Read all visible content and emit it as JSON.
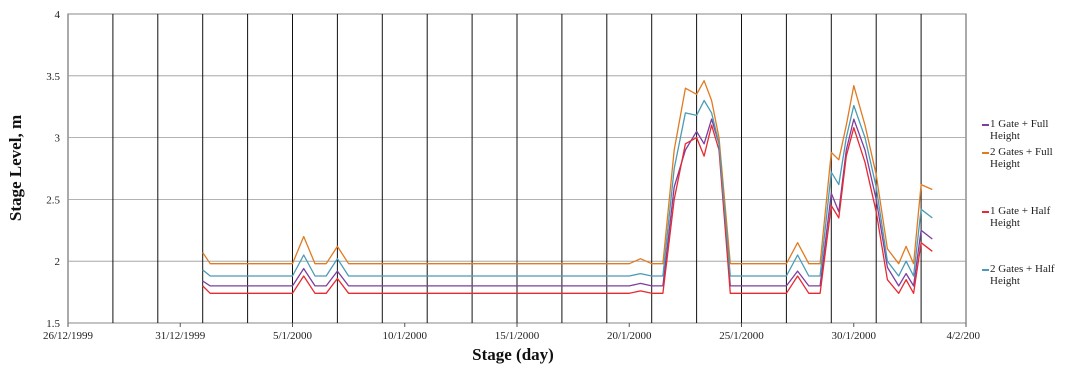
{
  "chart_data": {
    "type": "line",
    "title": "",
    "xlabel": "Stage (day)",
    "ylabel": "Stage Level, m",
    "xlim": [
      "26/12/1999",
      "4/2/2000"
    ],
    "ylim": [
      1.5,
      4
    ],
    "x_ticks": [
      "26/12/1999",
      "31/12/1999",
      "5/1/2000",
      "10/1/2000",
      "15/1/2000",
      "20/1/2000",
      "25/1/2000",
      "30/1/2000",
      "4/2/2000"
    ],
    "y_ticks": [
      "1.5",
      "2",
      "2.5",
      "3",
      "3.5",
      "4"
    ],
    "grid": "vertical lines every 2 days, horizontal gridlines at y ticks",
    "legend": "right",
    "series": [
      {
        "name": "1 Gate + Full Height",
        "color": "#7b3f9e",
        "x": [
          "1/1/2000",
          "1/1/2000",
          "1/1/2000",
          "5/1/2000",
          "5/1/2000",
          "6/1/2000",
          "6/1/2000",
          "7/1/2000",
          "7/1/2000",
          "8/1/2000",
          "20/1/2000",
          "20/1/2000",
          "21/1/2000",
          "21/1/2000",
          "22/1/2000",
          "22/1/2000",
          "23/1/2000",
          "23/1/2000",
          "23/1/2000",
          "24/1/2000",
          "24/1/2000",
          "27/1/2000",
          "27/1/2000",
          "28/1/2000",
          "28/1/2000",
          "29/1/2000",
          "29/1/2000",
          "29/1/2000",
          "30/1/2000",
          "30/1/2000",
          "31/1/2000",
          "31/1/2000",
          "1/2/2000",
          "1/2/2000",
          "1/2/2000",
          "2/2/2000",
          "2/2/2000"
        ],
        "y": [
          1.84,
          1.8,
          1.8,
          1.8,
          1.94,
          1.8,
          1.8,
          1.92,
          1.8,
          1.8,
          1.8,
          1.82,
          1.8,
          1.8,
          2.6,
          2.9,
          3.05,
          2.95,
          3.15,
          2.95,
          1.8,
          1.8,
          1.92,
          1.8,
          1.8,
          2.55,
          2.4,
          2.9,
          3.15,
          2.9,
          2.5,
          1.95,
          1.8,
          1.9,
          1.8,
          2.25,
          2.18
        ]
      },
      {
        "name": "2 Gates + Full Height",
        "color": "#e07b20",
        "x": [
          "1/1/2000",
          "1/1/2000",
          "1/1/2000",
          "5/1/2000",
          "5/1/2000",
          "6/1/2000",
          "6/1/2000",
          "7/1/2000",
          "7/1/2000",
          "8/1/2000",
          "20/1/2000",
          "20/1/2000",
          "21/1/2000",
          "21/1/2000",
          "22/1/2000",
          "22/1/2000",
          "23/1/2000",
          "23/1/2000",
          "23/1/2000",
          "24/1/2000",
          "24/1/2000",
          "27/1/2000",
          "27/1/2000",
          "28/1/2000",
          "28/1/2000",
          "29/1/2000",
          "29/1/2000",
          "29/1/2000",
          "30/1/2000",
          "30/1/2000",
          "31/1/2000",
          "31/1/2000",
          "1/2/2000",
          "1/2/2000",
          "1/2/2000",
          "2/2/2000",
          "2/2/2000"
        ],
        "y": [
          2.07,
          1.98,
          1.98,
          1.98,
          2.2,
          1.98,
          1.98,
          2.12,
          1.98,
          1.98,
          1.98,
          2.02,
          1.98,
          1.98,
          2.9,
          3.4,
          3.35,
          3.46,
          3.3,
          3.0,
          1.98,
          1.98,
          2.15,
          1.98,
          1.98,
          2.88,
          2.82,
          3.1,
          3.42,
          3.1,
          2.7,
          2.1,
          1.98,
          2.12,
          1.98,
          2.62,
          2.58
        ]
      },
      {
        "name": "1 Gate + Half Height",
        "color": "#e8292f",
        "x": [
          "1/1/2000",
          "1/1/2000",
          "1/1/2000",
          "5/1/2000",
          "5/1/2000",
          "6/1/2000",
          "6/1/2000",
          "7/1/2000",
          "7/1/2000",
          "8/1/2000",
          "20/1/2000",
          "20/1/2000",
          "21/1/2000",
          "21/1/2000",
          "22/1/2000",
          "22/1/2000",
          "23/1/2000",
          "23/1/2000",
          "23/1/2000",
          "24/1/2000",
          "24/1/2000",
          "27/1/2000",
          "27/1/2000",
          "28/1/2000",
          "28/1/2000",
          "29/1/2000",
          "29/1/2000",
          "29/1/2000",
          "30/1/2000",
          "30/1/2000",
          "31/1/2000",
          "31/1/2000",
          "1/2/2000",
          "1/2/2000",
          "1/2/2000",
          "2/2/2000",
          "2/2/2000"
        ],
        "y": [
          1.8,
          1.74,
          1.74,
          1.74,
          1.88,
          1.74,
          1.74,
          1.86,
          1.74,
          1.74,
          1.74,
          1.76,
          1.74,
          1.74,
          2.5,
          2.95,
          3.0,
          2.85,
          3.1,
          2.9,
          1.74,
          1.74,
          1.88,
          1.74,
          1.74,
          2.45,
          2.35,
          2.85,
          3.08,
          2.8,
          2.4,
          1.85,
          1.74,
          1.85,
          1.74,
          2.15,
          2.08
        ]
      },
      {
        "name": "2 Gates + Half Height",
        "color": "#4a9bb5",
        "x": [
          "1/1/2000",
          "1/1/2000",
          "1/1/2000",
          "5/1/2000",
          "5/1/2000",
          "6/1/2000",
          "6/1/2000",
          "7/1/2000",
          "7/1/2000",
          "8/1/2000",
          "20/1/2000",
          "20/1/2000",
          "21/1/2000",
          "21/1/2000",
          "22/1/2000",
          "22/1/2000",
          "23/1/2000",
          "23/1/2000",
          "23/1/2000",
          "24/1/2000",
          "24/1/2000",
          "27/1/2000",
          "27/1/2000",
          "28/1/2000",
          "28/1/2000",
          "29/1/2000",
          "29/1/2000",
          "29/1/2000",
          "30/1/2000",
          "30/1/2000",
          "31/1/2000",
          "31/1/2000",
          "1/2/2000",
          "1/2/2000",
          "1/2/2000",
          "2/2/2000",
          "2/2/2000"
        ],
        "y": [
          1.93,
          1.88,
          1.88,
          1.88,
          2.05,
          1.88,
          1.88,
          2.02,
          1.88,
          1.88,
          1.88,
          1.9,
          1.88,
          1.88,
          2.75,
          3.2,
          3.18,
          3.3,
          3.2,
          2.95,
          1.88,
          1.88,
          2.05,
          1.88,
          1.88,
          2.72,
          2.62,
          3.0,
          3.26,
          3.0,
          2.6,
          2.0,
          1.88,
          2.0,
          1.88,
          2.42,
          2.35
        ]
      }
    ]
  },
  "legend": {
    "items": [
      {
        "label": "1 Gate + Full Height",
        "color": "#7b3f9e"
      },
      {
        "label": "2 Gates + Full Height",
        "color": "#e07b20"
      },
      {
        "label": "1 Gate + Half Height",
        "color": "#e8292f"
      },
      {
        "label": "2 Gates + Half Height",
        "color": "#4a9bb5"
      }
    ]
  }
}
